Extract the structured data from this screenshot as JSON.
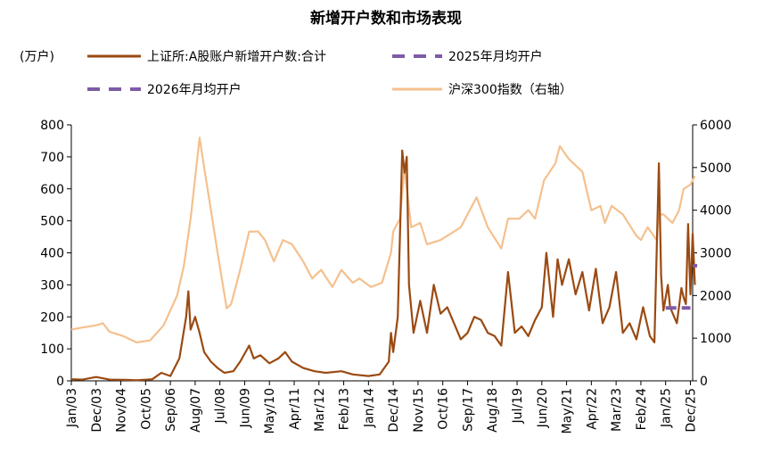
{
  "chart_data": {
    "type": "line",
    "title": "新增开户数和市场表现",
    "ylabel": "(万户)",
    "y_left": {
      "lim": [
        0,
        800
      ],
      "ticks": [
        0,
        100,
        200,
        300,
        400,
        500,
        600,
        700,
        800
      ]
    },
    "y_right": {
      "lim": [
        0,
        6000
      ],
      "ticks": [
        0,
        1000,
        2000,
        3000,
        4000,
        5000,
        6000
      ]
    },
    "x_range": [
      "2003-01",
      "2026-01"
    ],
    "x_ticks": [
      "Jan/03",
      "Dec/03",
      "Nov/04",
      "Oct/05",
      "Sep/06",
      "Aug/07",
      "Jul/08",
      "Jun/09",
      "May/10",
      "Apr/11",
      "Mar/12",
      "Feb/13",
      "Jan/14",
      "Dec/14",
      "Nov/15",
      "Oct/16",
      "Sep/17",
      "Aug/18",
      "Jul/19",
      "Jun/20",
      "May/21",
      "Apr/22",
      "Mar/23",
      "Feb/24",
      "Jan/25",
      "Dec/25"
    ],
    "legend_placement": "top",
    "series": [
      {
        "name": "上证所:A股账户新增开户数:合计",
        "axis": "left",
        "color": "#9a4a12",
        "style": "solid",
        "points": [
          [
            "2003-01",
            5
          ],
          [
            "2003-06",
            4
          ],
          [
            "2003-12",
            12
          ],
          [
            "2004-06",
            4
          ],
          [
            "2005-01",
            3
          ],
          [
            "2005-06",
            2
          ],
          [
            "2006-01",
            5
          ],
          [
            "2006-05",
            25
          ],
          [
            "2006-09",
            15
          ],
          [
            "2007-01",
            70
          ],
          [
            "2007-04",
            200
          ],
          [
            "2007-05",
            280
          ],
          [
            "2007-06",
            160
          ],
          [
            "2007-08",
            200
          ],
          [
            "2007-10",
            150
          ],
          [
            "2007-12",
            90
          ],
          [
            "2008-03",
            60
          ],
          [
            "2008-06",
            40
          ],
          [
            "2008-09",
            25
          ],
          [
            "2009-01",
            30
          ],
          [
            "2009-04",
            60
          ],
          [
            "2009-08",
            110
          ],
          [
            "2009-10",
            70
          ],
          [
            "2010-01",
            80
          ],
          [
            "2010-05",
            55
          ],
          [
            "2010-09",
            70
          ],
          [
            "2010-12",
            90
          ],
          [
            "2011-03",
            60
          ],
          [
            "2011-08",
            40
          ],
          [
            "2012-01",
            30
          ],
          [
            "2012-06",
            25
          ],
          [
            "2013-01",
            30
          ],
          [
            "2013-06",
            20
          ],
          [
            "2014-01",
            15
          ],
          [
            "2014-06",
            20
          ],
          [
            "2014-10",
            60
          ],
          [
            "2014-11",
            150
          ],
          [
            "2014-12",
            90
          ],
          [
            "2015-02",
            200
          ],
          [
            "2015-04",
            720
          ],
          [
            "2015-05",
            650
          ],
          [
            "2015-06",
            700
          ],
          [
            "2015-07",
            300
          ],
          [
            "2015-09",
            150
          ],
          [
            "2015-12",
            250
          ],
          [
            "2016-03",
            150
          ],
          [
            "2016-06",
            300
          ],
          [
            "2016-09",
            210
          ],
          [
            "2016-12",
            230
          ],
          [
            "2017-03",
            180
          ],
          [
            "2017-06",
            130
          ],
          [
            "2017-09",
            150
          ],
          [
            "2017-12",
            200
          ],
          [
            "2018-03",
            190
          ],
          [
            "2018-06",
            150
          ],
          [
            "2018-09",
            140
          ],
          [
            "2018-12",
            110
          ],
          [
            "2019-03",
            340
          ],
          [
            "2019-06",
            150
          ],
          [
            "2019-09",
            170
          ],
          [
            "2019-12",
            140
          ],
          [
            "2020-03",
            190
          ],
          [
            "2020-06",
            230
          ],
          [
            "2020-08",
            400
          ],
          [
            "2020-11",
            200
          ],
          [
            "2021-01",
            380
          ],
          [
            "2021-03",
            300
          ],
          [
            "2021-06",
            380
          ],
          [
            "2021-09",
            270
          ],
          [
            "2021-12",
            340
          ],
          [
            "2022-03",
            220
          ],
          [
            "2022-06",
            350
          ],
          [
            "2022-09",
            180
          ],
          [
            "2022-12",
            230
          ],
          [
            "2023-03",
            340
          ],
          [
            "2023-06",
            150
          ],
          [
            "2023-09",
            180
          ],
          [
            "2023-12",
            130
          ],
          [
            "2024-03",
            230
          ],
          [
            "2024-06",
            140
          ],
          [
            "2024-08",
            120
          ],
          [
            "2024-10",
            680
          ],
          [
            "2024-11",
            330
          ],
          [
            "2024-12",
            220
          ],
          [
            "2025-02",
            300
          ],
          [
            "2025-03",
            230
          ],
          [
            "2025-06",
            180
          ],
          [
            "2025-08",
            290
          ],
          [
            "2025-09",
            260
          ],
          [
            "2025-10",
            240
          ],
          [
            "2025-11",
            490
          ],
          [
            "2025-12",
            270
          ],
          [
            "2026-01",
            460
          ],
          [
            "2026-02",
            300
          ]
        ]
      },
      {
        "name": "2025年月均开户",
        "axis": "left",
        "color": "#7d5ba6",
        "style": "dashed",
        "points": [
          [
            "2025-01",
            228
          ],
          [
            "2025-12",
            228
          ]
        ]
      },
      {
        "name": "2026年月均开户",
        "axis": "left",
        "color": "#7d5ba6",
        "style": "dashed",
        "points": [
          [
            "2026-01",
            360
          ],
          [
            "2026-03",
            360
          ]
        ]
      },
      {
        "name": "沪深300指数（右轴）",
        "axis": "right",
        "color": "#f5c08e",
        "style": "solid",
        "points": [
          [
            "2003-01",
            1200
          ],
          [
            "2003-06",
            1250
          ],
          [
            "2003-12",
            1300
          ],
          [
            "2004-03",
            1350
          ],
          [
            "2004-06",
            1150
          ],
          [
            "2004-12",
            1050
          ],
          [
            "2005-06",
            900
          ],
          [
            "2005-12",
            950
          ],
          [
            "2006-06",
            1300
          ],
          [
            "2006-12",
            2000
          ],
          [
            "2007-03",
            2700
          ],
          [
            "2007-06",
            3800
          ],
          [
            "2007-10",
            5700
          ],
          [
            "2007-12",
            5000
          ],
          [
            "2008-03",
            4000
          ],
          [
            "2008-06",
            3000
          ],
          [
            "2008-10",
            1700
          ],
          [
            "2008-12",
            1800
          ],
          [
            "2009-04",
            2600
          ],
          [
            "2009-08",
            3500
          ],
          [
            "2009-12",
            3500
          ],
          [
            "2010-03",
            3300
          ],
          [
            "2010-07",
            2800
          ],
          [
            "2010-11",
            3300
          ],
          [
            "2011-03",
            3200
          ],
          [
            "2011-08",
            2800
          ],
          [
            "2011-12",
            2400
          ],
          [
            "2012-04",
            2600
          ],
          [
            "2012-09",
            2200
          ],
          [
            "2013-01",
            2600
          ],
          [
            "2013-06",
            2300
          ],
          [
            "2013-09",
            2400
          ],
          [
            "2014-02",
            2200
          ],
          [
            "2014-07",
            2300
          ],
          [
            "2014-11",
            3000
          ],
          [
            "2014-12",
            3500
          ],
          [
            "2015-03",
            3800
          ],
          [
            "2015-05",
            5000
          ],
          [
            "2015-06",
            4500
          ],
          [
            "2015-08",
            3600
          ],
          [
            "2015-12",
            3700
          ],
          [
            "2016-03",
            3200
          ],
          [
            "2016-09",
            3300
          ],
          [
            "2016-12",
            3400
          ],
          [
            "2017-06",
            3600
          ],
          [
            "2017-11",
            4100
          ],
          [
            "2018-01",
            4300
          ],
          [
            "2018-06",
            3600
          ],
          [
            "2018-12",
            3100
          ],
          [
            "2019-03",
            3800
          ],
          [
            "2019-08",
            3800
          ],
          [
            "2019-12",
            4000
          ],
          [
            "2020-03",
            3800
          ],
          [
            "2020-07",
            4700
          ],
          [
            "2020-12",
            5100
          ],
          [
            "2021-02",
            5500
          ],
          [
            "2021-06",
            5200
          ],
          [
            "2021-12",
            4900
          ],
          [
            "2022-04",
            4000
          ],
          [
            "2022-08",
            4100
          ],
          [
            "2022-10",
            3700
          ],
          [
            "2023-01",
            4100
          ],
          [
            "2023-06",
            3900
          ],
          [
            "2023-12",
            3400
          ],
          [
            "2024-02",
            3300
          ],
          [
            "2024-05",
            3600
          ],
          [
            "2024-09",
            3300
          ],
          [
            "2024-10",
            3900
          ],
          [
            "2024-12",
            3900
          ],
          [
            "2025-04",
            3700
          ],
          [
            "2025-07",
            4000
          ],
          [
            "2025-09",
            4500
          ],
          [
            "2025-12",
            4600
          ],
          [
            "2026-02",
            4800
          ]
        ]
      }
    ]
  }
}
